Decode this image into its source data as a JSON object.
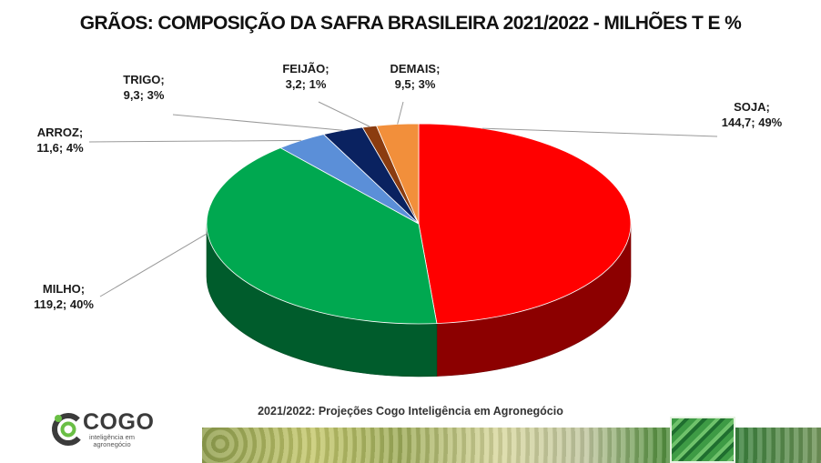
{
  "title": "GRÃOS: COMPOSIÇÃO DA SAFRA BRASILEIRA 2021/2022 - MILHÕES T E %",
  "source_note": "2021/2022: Projeções Cogo Inteligência em Agronegócio",
  "logo": {
    "word": "COGO",
    "subtitle_line1": "inteligência em",
    "subtitle_line2": "agronegócio"
  },
  "colors": {
    "soja": "#ff0000",
    "milho": "#00a850",
    "arroz": "#5b8fd8",
    "trigo": "#0a2260",
    "feijao": "#8b3c10",
    "demais": "#f28f3b"
  },
  "chart_data": {
    "type": "pie",
    "style": "3d",
    "unit": "milhões t",
    "slices": [
      {
        "key": "soja",
        "label_name": "SOJA;",
        "label_value": "144,7; 49%",
        "value": 144.7,
        "percent": 49
      },
      {
        "key": "milho",
        "label_name": "MILHO;",
        "label_value": "119,2; 40%",
        "value": 119.2,
        "percent": 40
      },
      {
        "key": "arroz",
        "label_name": "ARROZ;",
        "label_value": "11,6; 4%",
        "value": 11.6,
        "percent": 4
      },
      {
        "key": "trigo",
        "label_name": "TRIGO;",
        "label_value": "9,3; 3%",
        "value": 9.3,
        "percent": 3
      },
      {
        "key": "feijao",
        "label_name": "FEIJÃO;",
        "label_value": "3,2; 1%",
        "value": 3.2,
        "percent": 1
      },
      {
        "key": "demais",
        "label_name": "DEMAIS;",
        "label_value": "9,5; 3%",
        "value": 9.5,
        "percent": 3
      }
    ]
  }
}
